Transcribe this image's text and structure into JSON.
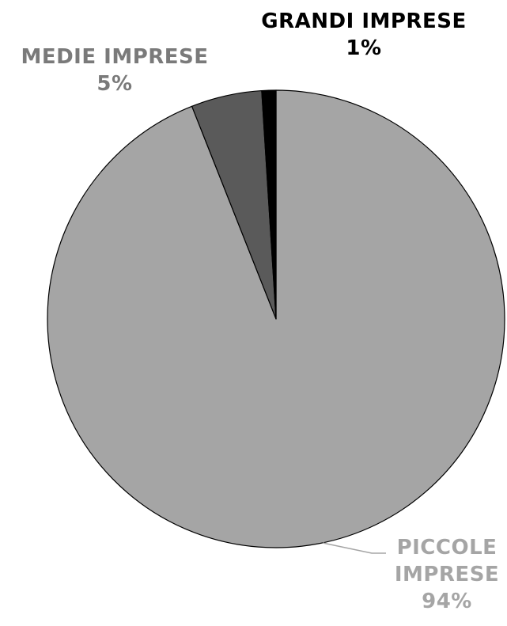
{
  "chart_data": {
    "type": "pie",
    "start_angle_deg": 0,
    "direction": "clockwise",
    "series": [
      {
        "values": [
          94,
          5,
          1
        ],
        "categories": [
          "PICCOLE IMPRESE",
          "MEDIE IMPRESE",
          "GRANDI IMPRESE"
        ]
      }
    ],
    "slices": [
      {
        "name": "PICCOLE IMPRESE",
        "value": 94,
        "label_lines": [
          "PICCOLE",
          "IMPRESE"
        ],
        "value_label": "94%",
        "fill": "#a5a5a5",
        "label_color": "#a5a5a5"
      },
      {
        "name": "MEDIE IMPRESE",
        "value": 5,
        "label_lines": [
          "MEDIE IMPRESE"
        ],
        "value_label": "5%",
        "fill": "#5a5a5a",
        "label_color": "#7a7a7a"
      },
      {
        "name": "GRANDI IMPRESE",
        "value": 1,
        "label_lines": [
          "GRANDI IMPRESE"
        ],
        "value_label": "1%",
        "fill": "#000000",
        "label_color": "#000000"
      }
    ],
    "legend": "none",
    "title": ""
  }
}
